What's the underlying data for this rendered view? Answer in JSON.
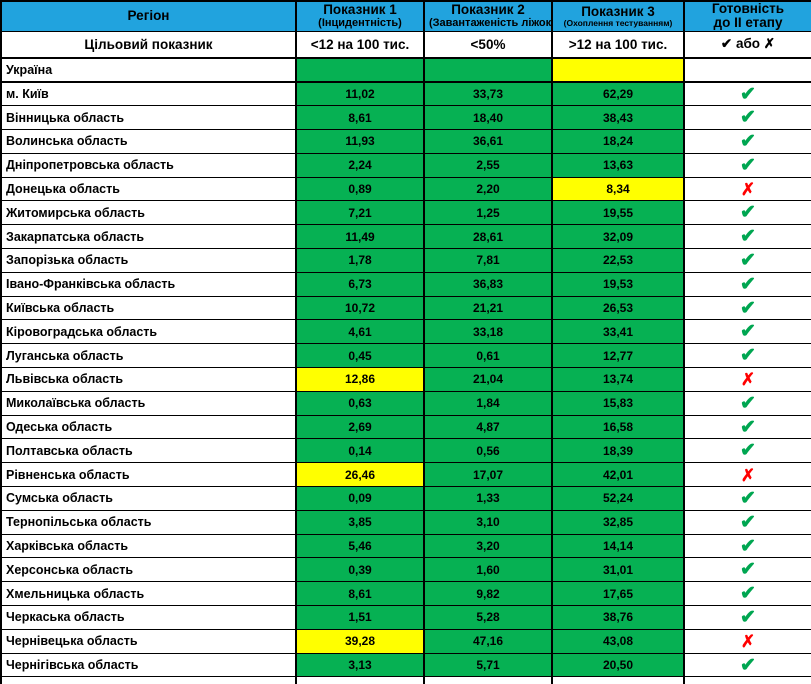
{
  "columns": {
    "region": "Регіон",
    "indicator1": {
      "title": "Показник 1",
      "subtitle": "(Інцидентність)",
      "target": "<12 на 100 тис."
    },
    "indicator2": {
      "title": "Показник 2",
      "subtitle": "(Завантаженість ліжок)",
      "target": "<50%"
    },
    "indicator3": {
      "title": "Показник 3",
      "subtitle": "(Охоплення тестуванням)",
      "target": ">12 на 100 тис."
    },
    "readiness": {
      "title": "Готовність",
      "subtitle": "до II етапу",
      "target": "✔ або ✗"
    }
  },
  "target_row_label": "Цільовий показник",
  "symbols": {
    "check": "✔",
    "cross": "✗"
  },
  "colors": {
    "header_blue": "#21a3de",
    "cell_green": "#06b153",
    "cell_yellow": "#ffff00",
    "cell_gray": "#c6c6c6",
    "check_green": "#00a651",
    "cross_red": "#ff0000"
  },
  "rows": [
    {
      "region": "Україна",
      "v1": "",
      "c1": "green",
      "v2": "",
      "c2": "green",
      "v3": "",
      "c3": "yellow",
      "mark": "none",
      "mark_bg": "gray"
    },
    {
      "region": "м. Київ",
      "v1": "11,02",
      "c1": "green",
      "v2": "33,73",
      "c2": "green",
      "v3": "62,29",
      "c3": "green",
      "mark": "check",
      "mark_bg": "white"
    },
    {
      "region": "Вінницька область",
      "v1": "8,61",
      "c1": "green",
      "v2": "18,40",
      "c2": "green",
      "v3": "38,43",
      "c3": "green",
      "mark": "check",
      "mark_bg": "white"
    },
    {
      "region": "Волинська область",
      "v1": "11,93",
      "c1": "green",
      "v2": "36,61",
      "c2": "green",
      "v3": "18,24",
      "c3": "green",
      "mark": "check",
      "mark_bg": "white"
    },
    {
      "region": "Дніпропетровська область",
      "v1": "2,24",
      "c1": "green",
      "v2": "2,55",
      "c2": "green",
      "v3": "13,63",
      "c3": "green",
      "mark": "check",
      "mark_bg": "white"
    },
    {
      "region": "Донецька область",
      "v1": "0,89",
      "c1": "green",
      "v2": "2,20",
      "c2": "green",
      "v3": "8,34",
      "c3": "yellow",
      "mark": "cross",
      "mark_bg": "white"
    },
    {
      "region": "Житомирська область",
      "v1": "7,21",
      "c1": "green",
      "v2": "1,25",
      "c2": "green",
      "v3": "19,55",
      "c3": "green",
      "mark": "check",
      "mark_bg": "white"
    },
    {
      "region": "Закарпатська область",
      "v1": "11,49",
      "c1": "green",
      "v2": "28,61",
      "c2": "green",
      "v3": "32,09",
      "c3": "green",
      "mark": "check",
      "mark_bg": "white"
    },
    {
      "region": "Запорізька область",
      "v1": "1,78",
      "c1": "green",
      "v2": "7,81",
      "c2": "green",
      "v3": "22,53",
      "c3": "green",
      "mark": "check",
      "mark_bg": "white"
    },
    {
      "region": "Івано-Франківська область",
      "v1": "6,73",
      "c1": "green",
      "v2": "36,83",
      "c2": "green",
      "v3": "19,53",
      "c3": "green",
      "mark": "check",
      "mark_bg": "white"
    },
    {
      "region": "Київська область",
      "v1": "10,72",
      "c1": "green",
      "v2": "21,21",
      "c2": "green",
      "v3": "26,53",
      "c3": "green",
      "mark": "check",
      "mark_bg": "white"
    },
    {
      "region": "Кіровоградська область",
      "v1": "4,61",
      "c1": "green",
      "v2": "33,18",
      "c2": "green",
      "v3": "33,41",
      "c3": "green",
      "mark": "check",
      "mark_bg": "white"
    },
    {
      "region": "Луганська область",
      "v1": "0,45",
      "c1": "green",
      "v2": "0,61",
      "c2": "green",
      "v3": "12,77",
      "c3": "green",
      "mark": "check",
      "mark_bg": "white"
    },
    {
      "region": "Львівська область",
      "v1": "12,86",
      "c1": "yellow",
      "v2": "21,04",
      "c2": "green",
      "v3": "13,74",
      "c3": "green",
      "mark": "cross",
      "mark_bg": "white"
    },
    {
      "region": "Миколаївська область",
      "v1": "0,63",
      "c1": "green",
      "v2": "1,84",
      "c2": "green",
      "v3": "15,83",
      "c3": "green",
      "mark": "check",
      "mark_bg": "white"
    },
    {
      "region": "Одеська область",
      "v1": "2,69",
      "c1": "green",
      "v2": "4,87",
      "c2": "green",
      "v3": "16,58",
      "c3": "green",
      "mark": "check",
      "mark_bg": "white"
    },
    {
      "region": "Полтавська область",
      "v1": "0,14",
      "c1": "green",
      "v2": "0,56",
      "c2": "green",
      "v3": "18,39",
      "c3": "green",
      "mark": "check",
      "mark_bg": "white"
    },
    {
      "region": "Рівненська область",
      "v1": "26,46",
      "c1": "yellow",
      "v2": "17,07",
      "c2": "green",
      "v3": "42,01",
      "c3": "green",
      "mark": "cross",
      "mark_bg": "white"
    },
    {
      "region": "Сумська область",
      "v1": "0,09",
      "c1": "green",
      "v2": "1,33",
      "c2": "green",
      "v3": "52,24",
      "c3": "green",
      "mark": "check",
      "mark_bg": "white"
    },
    {
      "region": "Тернопільська область",
      "v1": "3,85",
      "c1": "green",
      "v2": "3,10",
      "c2": "green",
      "v3": "32,85",
      "c3": "green",
      "mark": "check",
      "mark_bg": "white"
    },
    {
      "region": "Харківська область",
      "v1": "5,46",
      "c1": "green",
      "v2": "3,20",
      "c2": "green",
      "v3": "14,14",
      "c3": "green",
      "mark": "check",
      "mark_bg": "white"
    },
    {
      "region": "Херсонська область",
      "v1": "0,39",
      "c1": "green",
      "v2": "1,60",
      "c2": "green",
      "v3": "31,01",
      "c3": "green",
      "mark": "check",
      "mark_bg": "white"
    },
    {
      "region": "Хмельницька область",
      "v1": "8,61",
      "c1": "green",
      "v2": "9,82",
      "c2": "green",
      "v3": "17,65",
      "c3": "green",
      "mark": "check",
      "mark_bg": "white"
    },
    {
      "region": "Черкаська область",
      "v1": "1,51",
      "c1": "green",
      "v2": "5,28",
      "c2": "green",
      "v3": "38,76",
      "c3": "green",
      "mark": "check",
      "mark_bg": "white"
    },
    {
      "region": "Чернівецька область",
      "v1": "39,28",
      "c1": "yellow",
      "v2": "47,16",
      "c2": "green",
      "v3": "43,08",
      "c3": "green",
      "mark": "cross",
      "mark_bg": "white"
    },
    {
      "region": "Чернігівська область",
      "v1": "3,13",
      "c1": "green",
      "v2": "5,71",
      "c2": "green",
      "v3": "20,50",
      "c3": "green",
      "mark": "check",
      "mark_bg": "white"
    }
  ]
}
